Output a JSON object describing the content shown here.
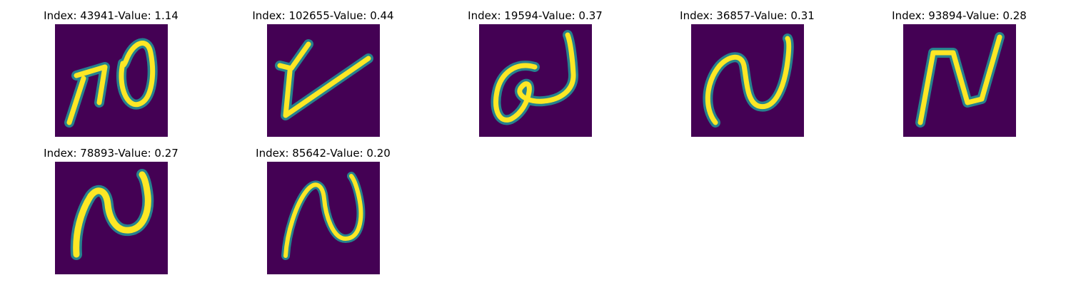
{
  "separator": " - ",
  "colors": {
    "background": "#440154",
    "stroke_outer": "#26828e",
    "stroke_inner": "#fde725"
  },
  "panels": [
    {
      "index_label": "Index: 43941",
      "value_label": "Value: 1.14"
    },
    {
      "index_label": "Index: 102655",
      "value_label": "Value: 0.44"
    },
    {
      "index_label": "Index: 19594",
      "value_label": "Value: 0.37"
    },
    {
      "index_label": "Index: 36857",
      "value_label": "Value: 0.31"
    },
    {
      "index_label": "Index: 93894",
      "value_label": "Value: 0.28"
    },
    {
      "index_label": "Index: 78893",
      "value_label": "Value: 0.27"
    },
    {
      "index_label": "Index: 85642",
      "value_label": "Value: 0.20"
    }
  ]
}
